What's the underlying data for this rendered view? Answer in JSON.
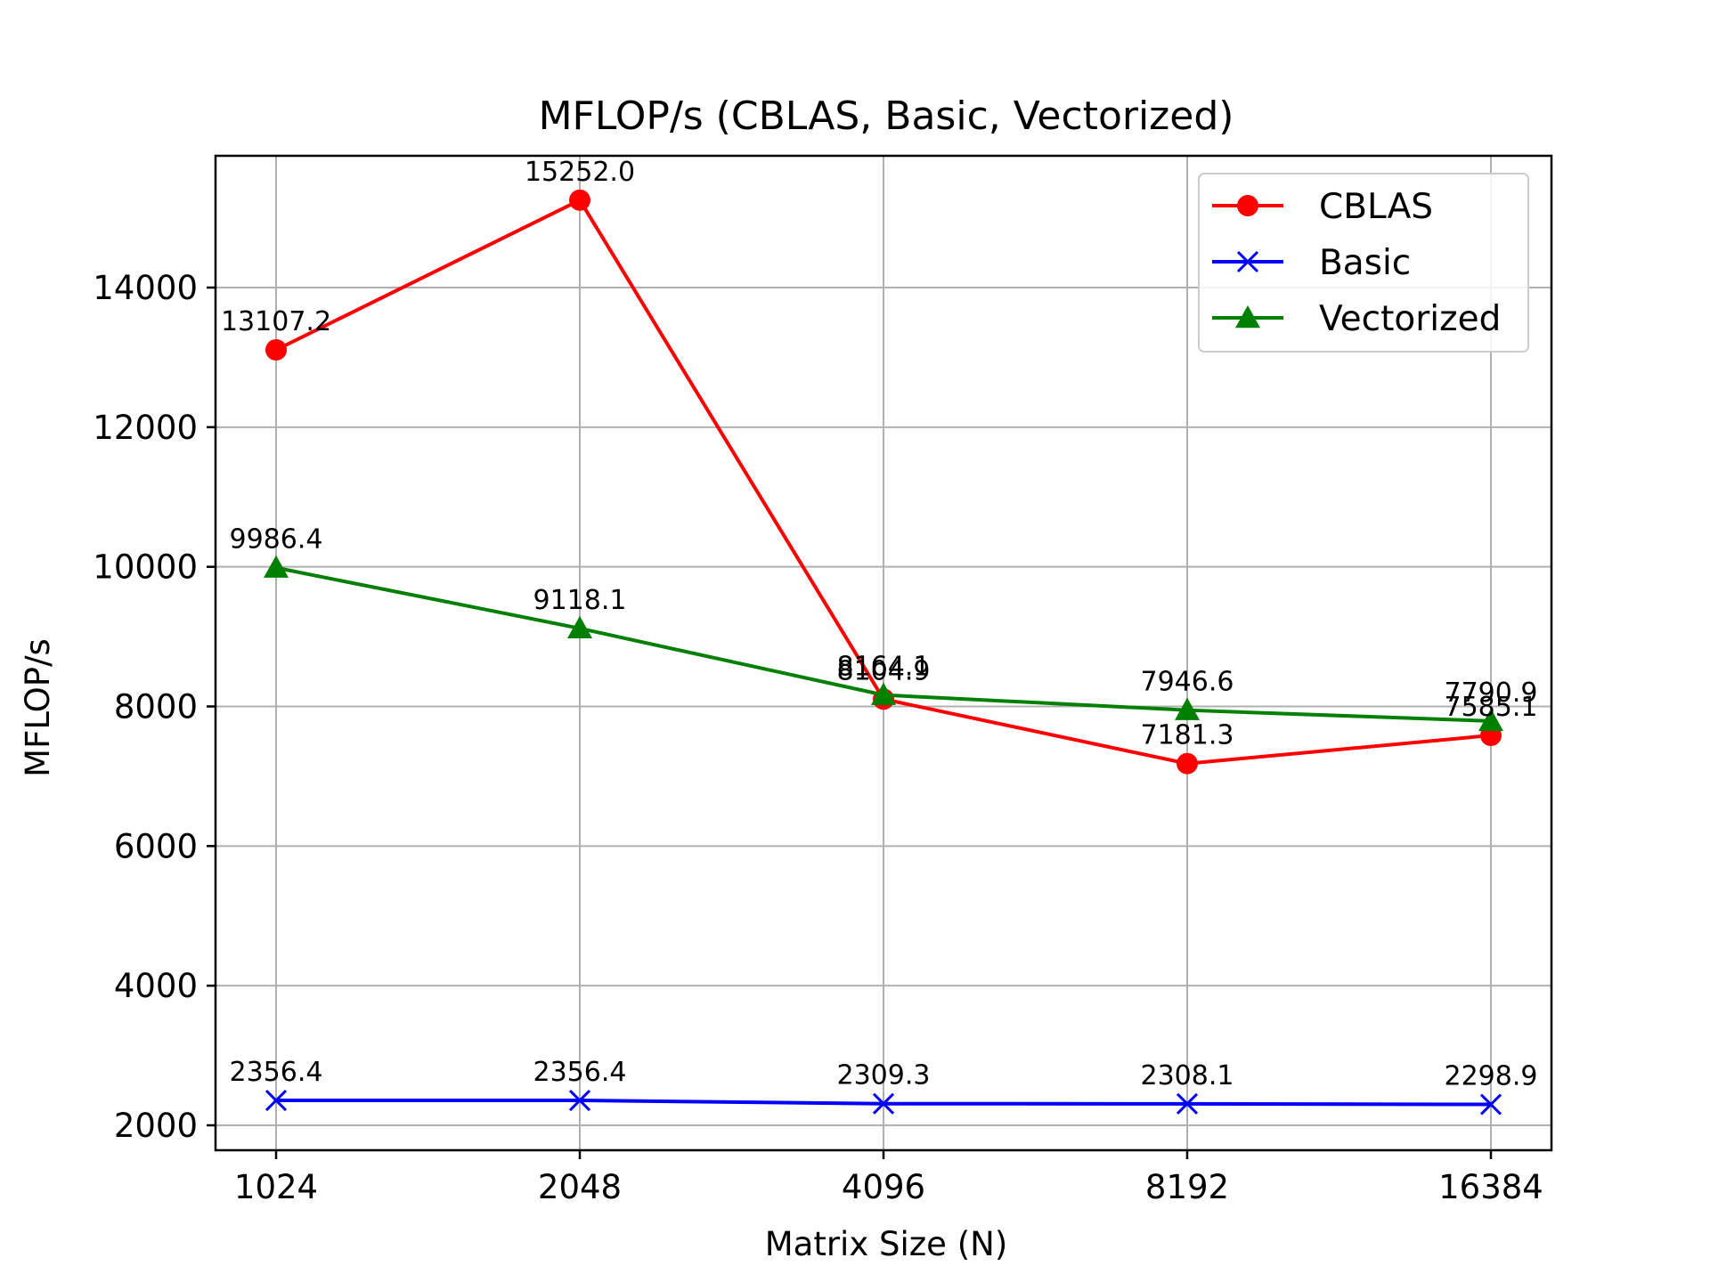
{
  "chart_data": {
    "type": "line",
    "title": "MFLOP/s (CBLAS, Basic, Vectorized)",
    "xlabel": "Matrix Size (N)",
    "ylabel": "MFLOP/s",
    "categories": [
      "1024",
      "2048",
      "4096",
      "8192",
      "16384"
    ],
    "yticks": [
      2000,
      4000,
      6000,
      8000,
      10000,
      12000,
      14000
    ],
    "ylim": [
      1600,
      15900
    ],
    "grid": true,
    "legend_position": "top-right",
    "series": [
      {
        "name": "CBLAS",
        "color": "#ff0000",
        "marker": "circle",
        "values": [
          13107.2,
          15252.0,
          8104.9,
          7181.3,
          7585.1
        ],
        "labels": [
          "13107.2",
          "15252.0",
          "8104.9",
          "7181.3",
          "7585.1"
        ]
      },
      {
        "name": "Basic",
        "color": "#0000ff",
        "marker": "x",
        "values": [
          2356.4,
          2356.4,
          2309.3,
          2308.1,
          2298.9
        ],
        "labels": [
          "2356.4",
          "2356.4",
          "2309.3",
          "2308.1",
          "2298.9"
        ]
      },
      {
        "name": "Vectorized",
        "color": "#008000",
        "marker": "triangle",
        "values": [
          9986.4,
          9118.1,
          8164.1,
          7946.6,
          7790.9
        ],
        "labels": [
          "9986.4",
          "9118.1",
          "8164.1",
          "7946.6",
          "7790.9"
        ]
      }
    ]
  }
}
